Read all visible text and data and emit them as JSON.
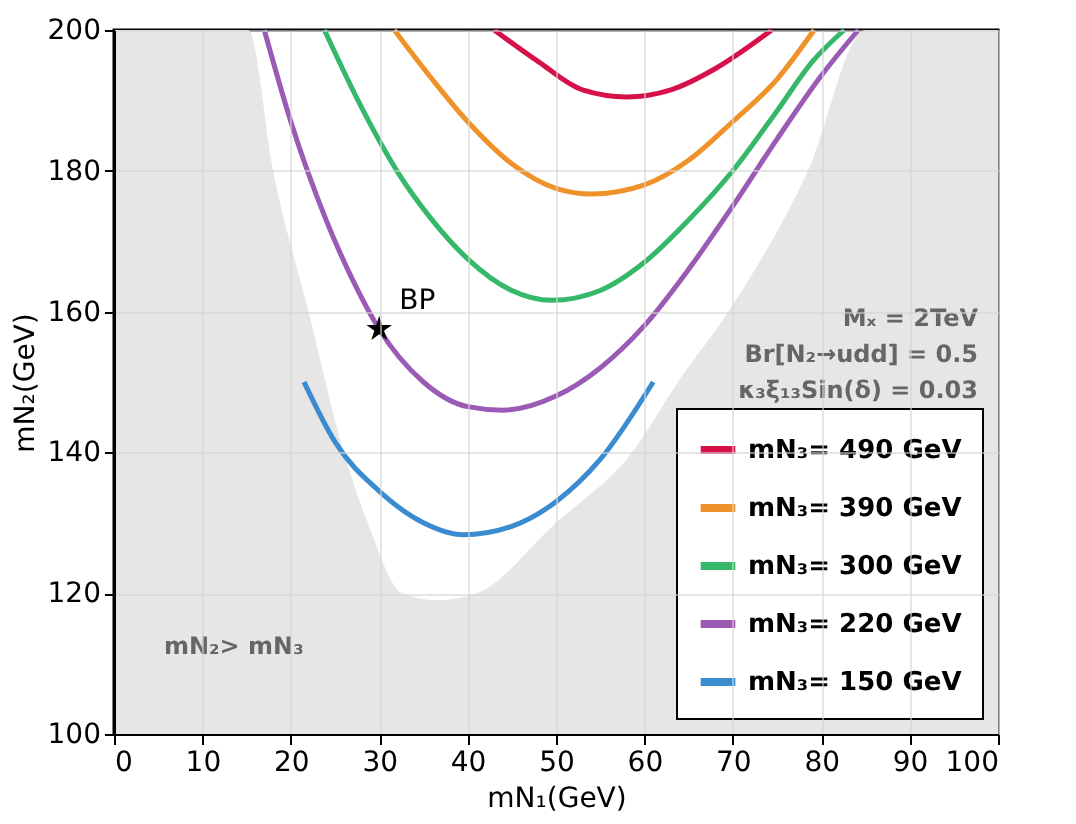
{
  "chart_data": {
    "type": "line",
    "xlabel": "mN₁(GeV)",
    "ylabel": "mN₂(GeV)",
    "xlim": [
      0,
      100
    ],
    "ylim": [
      100,
      200
    ],
    "xticks": [
      0,
      10,
      20,
      30,
      40,
      50,
      60,
      70,
      80,
      90,
      100
    ],
    "yticks": [
      100,
      120,
      140,
      160,
      180,
      200
    ],
    "grid": true,
    "legend": "bottom right",
    "line_style": "solid",
    "annotations": [
      {
        "text": "BP",
        "x": 30,
        "y": 157.5
      },
      "Mₓ = 2TeV",
      "Br[N₂→udd] = 0.5",
      "κ₃ξ₁₃Sin(δ) = 0.03",
      "mN₂> mN₃"
    ],
    "series": [
      {
        "type": "area",
        "color": "#e6e6e6",
        "x": [
          0,
          15.2,
          18,
          22,
          26,
          28.7,
          32.6,
          36.5,
          41,
          50,
          58.6,
          63.8,
          69.5,
          78.5,
          85,
          100
        ],
        "values": [
          200,
          200,
          180,
          160,
          140,
          130,
          120,
          119,
          120,
          130,
          140,
          150,
          160,
          180,
          200,
          200
        ]
      },
      {
        "name": "mN₃= 490 GeV",
        "color": "#d6114a",
        "x": [
          43,
          48,
          53,
          58,
          63,
          68,
          74.4
        ],
        "values": [
          200,
          195.5,
          191.5,
          190.5,
          191.5,
          194.5,
          200
        ]
      },
      {
        "name": "mN₃= 390 GeV",
        "color": "#f0922a",
        "x": [
          31.7,
          36,
          40,
          45,
          50,
          54,
          60,
          65,
          70,
          75,
          79.2
        ],
        "values": [
          200,
          193,
          187,
          181,
          177.5,
          176.7,
          178,
          181.5,
          187,
          193,
          200
        ]
      },
      {
        "name": "mN₃= 300 GeV",
        "color": "#36b86a",
        "x": [
          23.8,
          28,
          32,
          36,
          40,
          45,
          49.5,
          55,
          60,
          65,
          70,
          75,
          79,
          82.6
        ],
        "values": [
          200,
          189,
          180,
          173,
          167.5,
          163,
          161.6,
          163,
          167,
          173,
          180,
          188.5,
          195.5,
          200
        ]
      },
      {
        "name": "mN₃= 220 GeV",
        "color": "#9b5bb5",
        "x": [
          17,
          20,
          24,
          27,
          30,
          35,
          40,
          44,
          50,
          55,
          60,
          65,
          70,
          75,
          80,
          84.2
        ],
        "values": [
          200,
          187,
          173,
          164.5,
          157.5,
          150,
          146.5,
          146,
          148,
          152,
          158,
          166,
          175,
          184.5,
          193.5,
          200
        ]
      },
      {
        "name": "mN₃= 150 GeV",
        "color": "#3a8bd0",
        "x": [
          21.5,
          25,
          30,
          35,
          39.5,
          45,
          50,
          55,
          61
        ],
        "values": [
          150,
          141.5,
          134.5,
          130,
          128.3,
          129.5,
          133,
          139,
          150
        ]
      },
      {
        "type": "scatter",
        "marker": "star",
        "color": "#000000",
        "x": [
          30
        ],
        "values": [
          157.5
        ]
      }
    ]
  }
}
